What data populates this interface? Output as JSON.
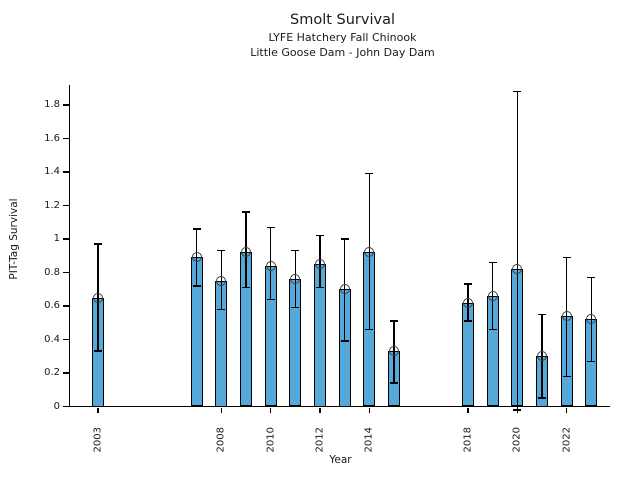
{
  "figure": {
    "title": "Smolt Survival",
    "subtitle_line1": "LYFE Hatchery Fall Chinook",
    "subtitle_line2": "Little Goose Dam - John Day Dam"
  },
  "chart_data": {
    "type": "bar",
    "title": "Smolt Survival",
    "subtitle": [
      "LYFE Hatchery Fall Chinook",
      "Little Goose Dam - John Day Dam"
    ],
    "xlabel": "Year",
    "ylabel": "PIT-Tag Survival",
    "ylim": [
      0,
      1.92
    ],
    "xlim": [
      2001.9,
      2023.8
    ],
    "grid": false,
    "legend": "none",
    "y_tick_labels": [
      "0",
      "0.2",
      "0.4",
      "0.6",
      "0.8",
      "1",
      "1.2",
      "1.4",
      "1.6",
      "1.8"
    ],
    "x_tick_years": [
      2003,
      2008,
      2010,
      2012,
      2014,
      2018,
      2020,
      2022
    ],
    "bar_color": "#56A8D8",
    "bar_edge_color": "#000000",
    "error_bar_color": "#000000",
    "marker_style": "open-circle",
    "series": [
      {
        "name": "PIT-Tag Survival",
        "points": [
          {
            "year": 2003,
            "value": 0.65,
            "ci_low": 0.33,
            "ci_high": 0.97
          },
          {
            "year": 2007,
            "value": 0.89,
            "ci_low": 0.72,
            "ci_high": 1.06
          },
          {
            "year": 2008,
            "value": 0.75,
            "ci_low": 0.58,
            "ci_high": 0.93
          },
          {
            "year": 2009,
            "value": 0.92,
            "ci_low": 0.71,
            "ci_high": 1.16
          },
          {
            "year": 2010,
            "value": 0.84,
            "ci_low": 0.64,
            "ci_high": 1.07
          },
          {
            "year": 2011,
            "value": 0.76,
            "ci_low": 0.59,
            "ci_high": 0.93
          },
          {
            "year": 2012,
            "value": 0.85,
            "ci_low": 0.71,
            "ci_high": 1.02
          },
          {
            "year": 2013,
            "value": 0.7,
            "ci_low": 0.39,
            "ci_high": 1.0
          },
          {
            "year": 2014,
            "value": 0.92,
            "ci_low": 0.46,
            "ci_high": 1.39
          },
          {
            "year": 2015,
            "value": 0.33,
            "ci_low": 0.14,
            "ci_high": 0.51
          },
          {
            "year": 2018,
            "value": 0.62,
            "ci_low": 0.51,
            "ci_high": 0.73
          },
          {
            "year": 2019,
            "value": 0.66,
            "ci_low": 0.46,
            "ci_high": 0.86
          },
          {
            "year": 2020,
            "value": 0.82,
            "ci_low": -0.02,
            "ci_high": 1.88
          },
          {
            "year": 2021,
            "value": 0.3,
            "ci_low": 0.05,
            "ci_high": 0.55
          },
          {
            "year": 2022,
            "value": 0.54,
            "ci_low": 0.18,
            "ci_high": 0.89
          },
          {
            "year": 2023,
            "value": 0.52,
            "ci_low": 0.27,
            "ci_high": 0.77
          }
        ]
      }
    ]
  }
}
